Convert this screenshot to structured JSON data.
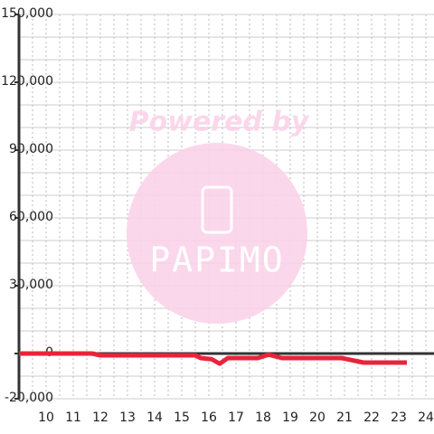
{
  "chart_data": {
    "type": "line",
    "x": [
      9,
      11.7,
      12,
      15.5,
      15.7,
      16.1,
      16.4,
      16.7,
      17.8,
      18.2,
      18.7,
      20.9,
      21.7,
      23.3
    ],
    "series": [
      {
        "color": "#e8243c",
        "values": [
          0,
          0,
          -800,
          -800,
          -2000,
          -2500,
          -4500,
          -2000,
          -2000,
          -500,
          -2000,
          -2000,
          -4000,
          -4000
        ]
      }
    ],
    "xlim": [
      9,
      24.3
    ],
    "xticks": [
      10,
      11,
      12,
      13,
      14,
      15,
      16,
      17,
      18,
      19,
      20,
      21,
      22,
      23,
      24
    ],
    "x_minor_ticks": [
      9.5,
      10.5,
      11.5,
      12.5,
      13.5,
      14.5,
      15.5,
      16.5,
      17.5,
      18.5,
      19.5,
      20.5,
      21.5,
      22.5,
      23.5
    ],
    "ylim": [
      -20000,
      150000
    ],
    "yticks": [
      {
        "value": -20000,
        "label": "-20,000"
      },
      {
        "value": 0,
        "label": "0"
      },
      {
        "value": 30000,
        "label": "30,000"
      },
      {
        "value": 60000,
        "label": "60,000"
      },
      {
        "value": 90000,
        "label": "90,000"
      },
      {
        "value": 120000,
        "label": "120,000"
      },
      {
        "value": 150000,
        "label": "150,000"
      }
    ],
    "y_minor_ticks": [
      -10000,
      10000,
      20000,
      40000,
      50000,
      70000,
      80000,
      100000,
      110000,
      130000,
      140000
    ],
    "grid": true,
    "watermark": {
      "line1": "Powered by",
      "line2": "PAPIMO"
    }
  }
}
